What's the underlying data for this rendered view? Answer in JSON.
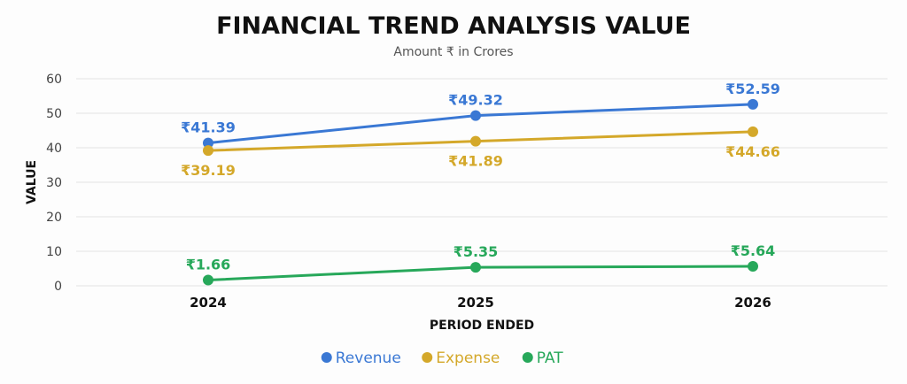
{
  "chart_data": {
    "type": "line",
    "title": "FINANCIAL TREND ANALYSIS VALUE",
    "subtitle": "Amount ₹ in Crores",
    "xlabel": "PERIOD ENDED",
    "ylabel": "VALUE",
    "categories": [
      "2024",
      "2025",
      "2026"
    ],
    "ylim": [
      0,
      60
    ],
    "yticks": [
      0,
      10,
      20,
      30,
      40,
      50,
      60
    ],
    "grid": true,
    "legend_position": "bottom",
    "series": [
      {
        "name": "Revenue",
        "color": "#3a78d4",
        "values": [
          41.39,
          49.32,
          52.59
        ],
        "labels": [
          "₹41.39",
          "₹49.32",
          "₹52.59"
        ],
        "label_side": "above"
      },
      {
        "name": "Expense",
        "color": "#d4a82a",
        "values": [
          39.19,
          41.89,
          44.66
        ],
        "labels": [
          "₹39.19",
          "₹41.89",
          "₹44.66"
        ],
        "label_side": "below"
      },
      {
        "name": "PAT",
        "color": "#27a85a",
        "values": [
          1.66,
          5.35,
          5.64
        ],
        "labels": [
          "₹1.66",
          "₹5.35",
          "₹5.64"
        ],
        "label_side": "above"
      }
    ]
  }
}
